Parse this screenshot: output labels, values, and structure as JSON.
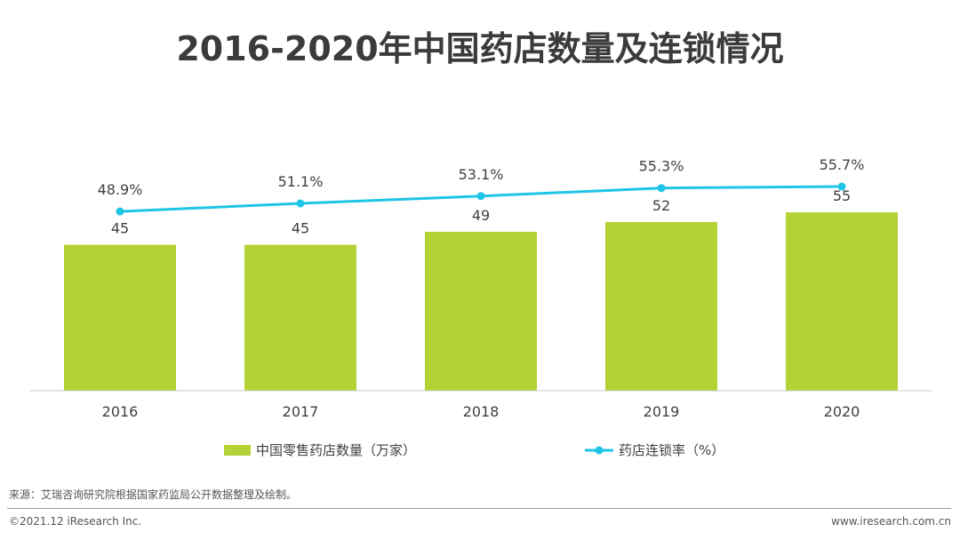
{
  "title": "2016-2020年中国药店数量及连锁情况",
  "chart_data": {
    "type": "bar",
    "categories": [
      "2016",
      "2017",
      "2018",
      "2019",
      "2020"
    ],
    "series": [
      {
        "name": "中国零售药店数量（万家）",
        "type": "bar",
        "values": [
          45,
          45,
          49,
          52,
          55
        ],
        "labels": [
          "45",
          "45",
          "49",
          "52",
          "55"
        ],
        "color": "#b2d235"
      },
      {
        "name": "药店连锁率（%）",
        "type": "line",
        "values": [
          48.9,
          51.1,
          53.1,
          55.3,
          55.7
        ],
        "labels": [
          "48.9%",
          "51.1%",
          "53.1%",
          "55.3%",
          "55.7%"
        ],
        "color": "#1fc5e6"
      }
    ],
    "bar_ylim": [
      0,
      75
    ],
    "line_ylim": [
      0,
      70
    ],
    "xlabel": "",
    "ylabel": "",
    "grid": false,
    "legend_position": "bottom"
  },
  "footer": {
    "source": "来源：艾瑞咨询研究院根据国家药监局公开数据整理及绘制。",
    "copyright": "©2021.12 iResearch Inc.",
    "website": "www.iresearch.com.cn"
  }
}
